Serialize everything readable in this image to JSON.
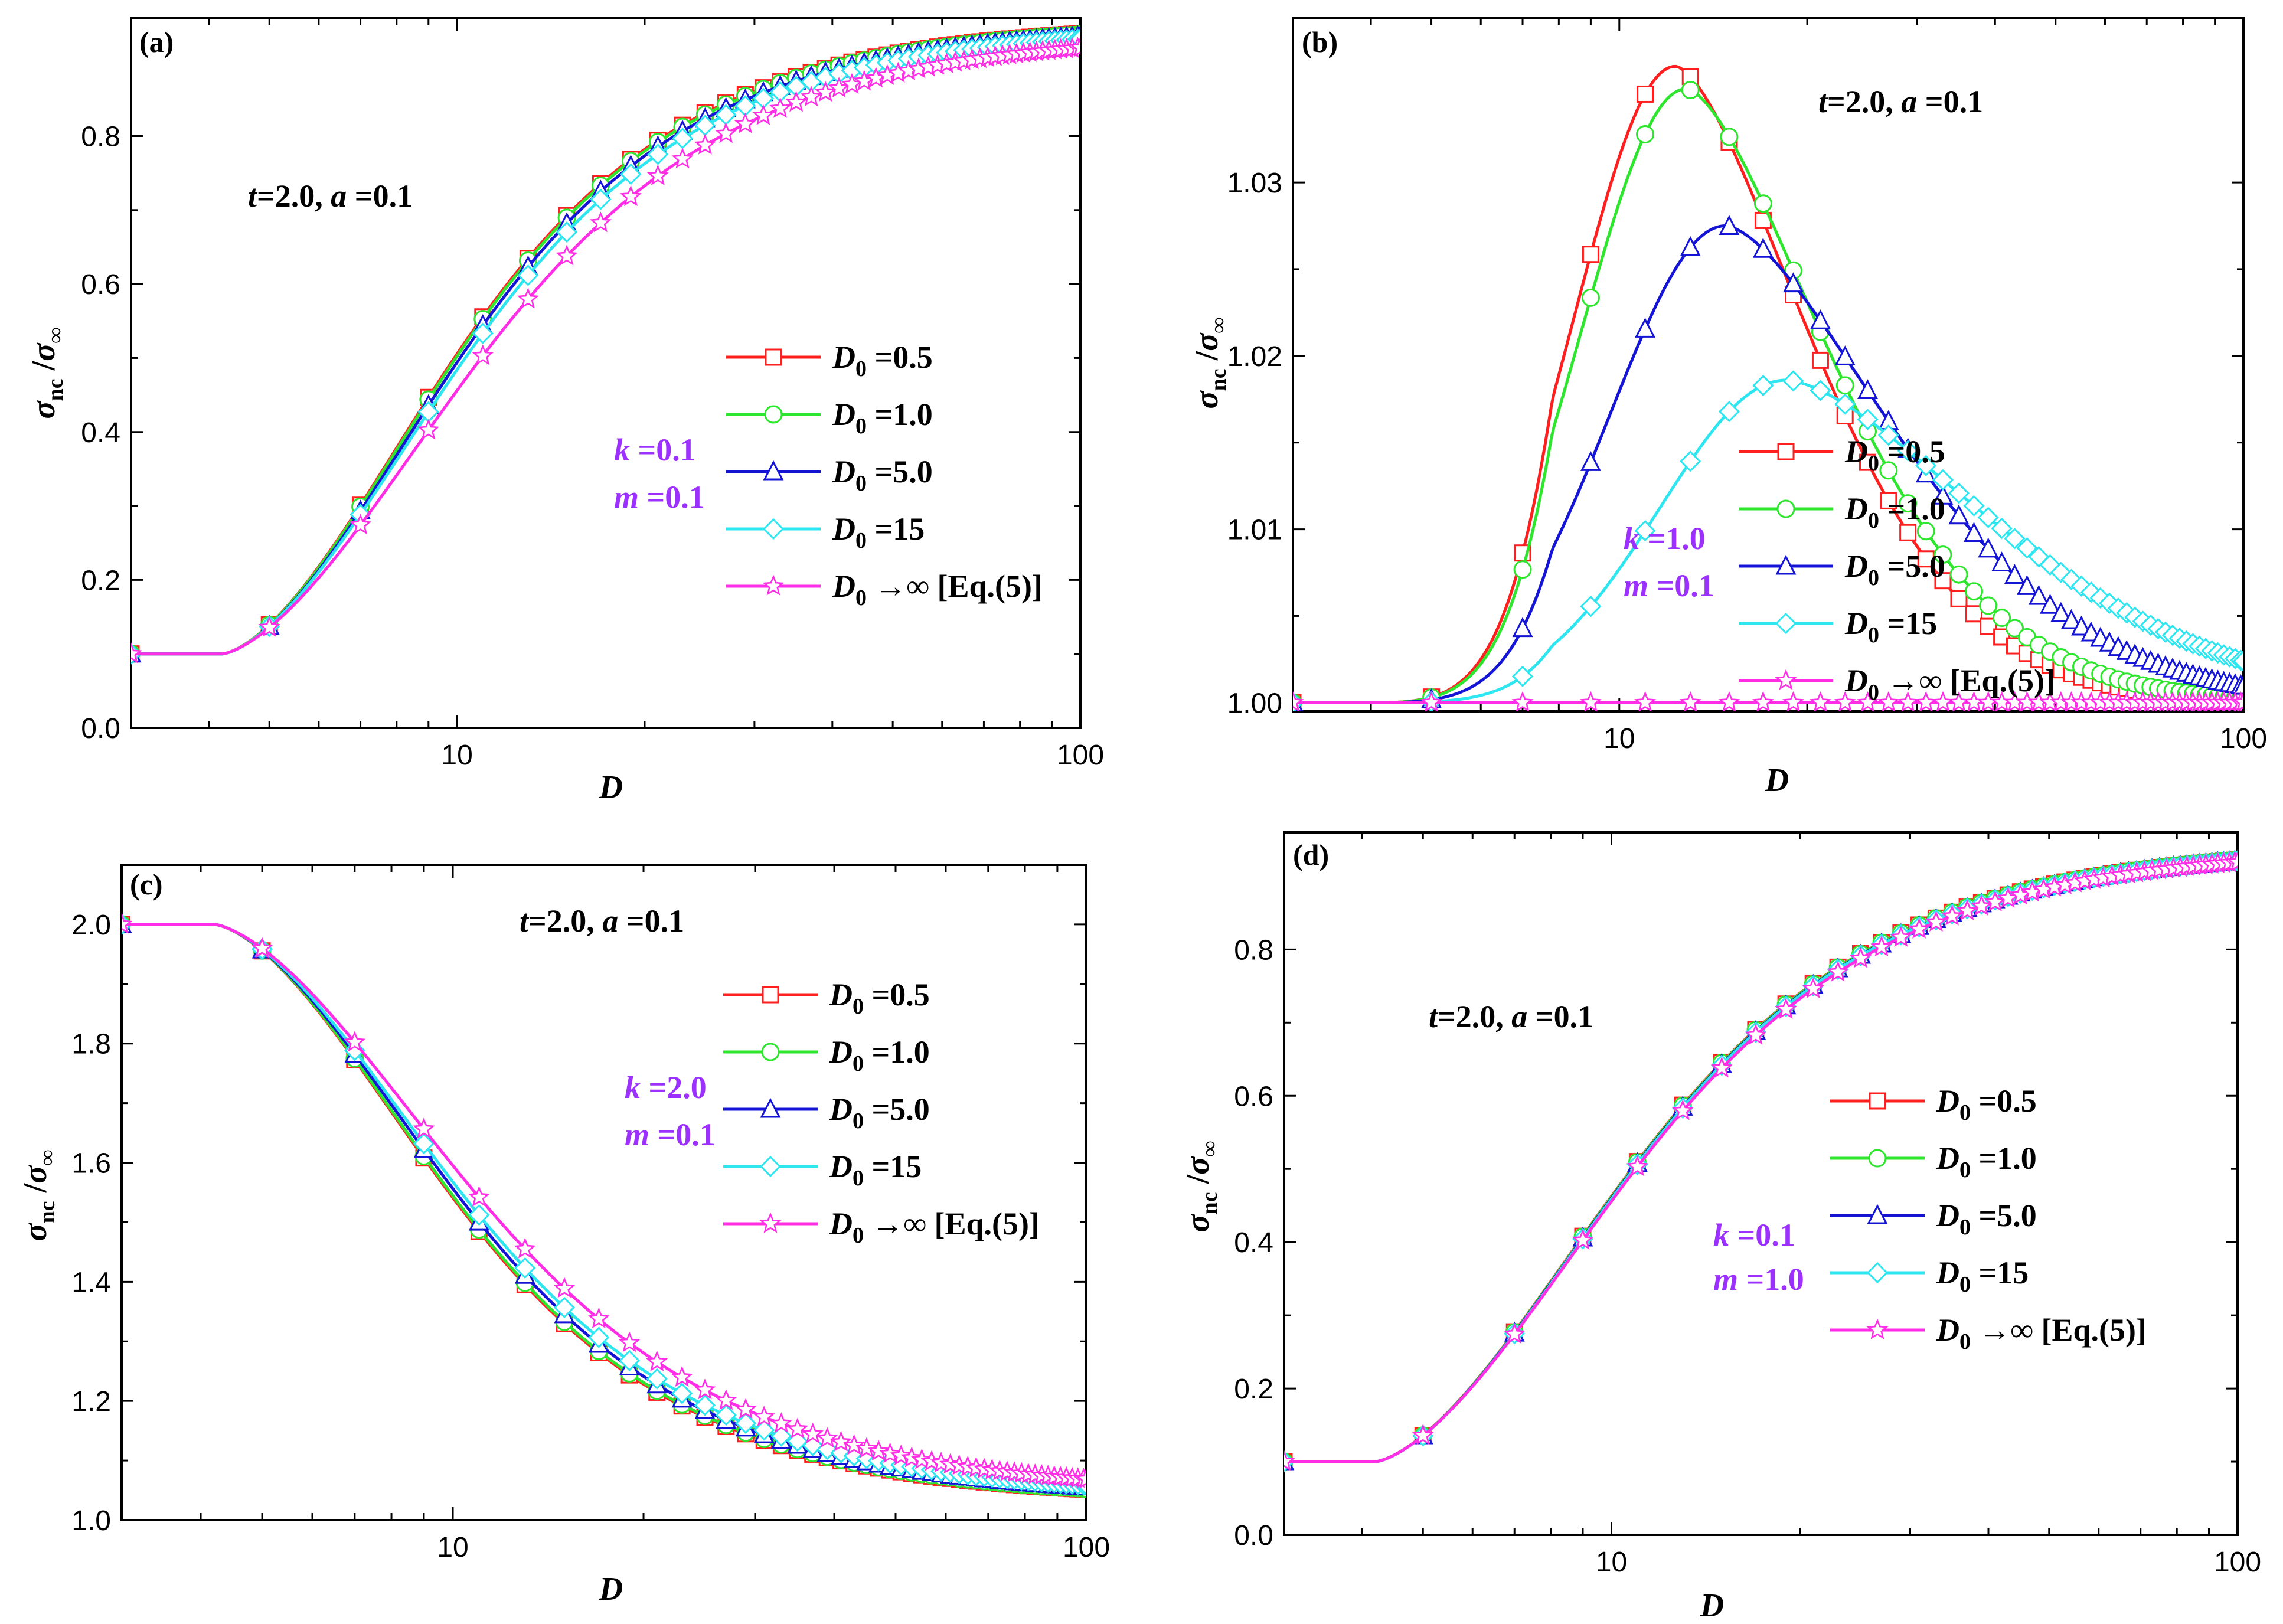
{
  "colors": {
    "red": "#ff1f1f",
    "green": "#2ee62e",
    "blue": "#1414d6",
    "cyan": "#2ee6f0",
    "magenta": "#ff2ee6",
    "purple": "#9b30ff"
  },
  "ylabel": {
    "sigma": "σ",
    "sub": "nc",
    "slash": " /",
    "sigma2": "σ",
    "sub2": "∞"
  },
  "xlabel": "D",
  "chart_data": [
    {
      "type": "line",
      "panel": "(a)",
      "params": "t=2.0, a =0.1",
      "params_parts": {
        "t": "t",
        "t_val": "=2.0, ",
        "a": "a",
        "a_val": " =0.1"
      },
      "k_line": "k =0.1",
      "m_line": "m =0.1",
      "xscale": "log",
      "xlim": [
        3.0,
        100
      ],
      "ylim": [
        0.0,
        0.96
      ],
      "xticks": [
        10,
        100
      ],
      "xtick_labels": [
        "10",
        "100"
      ],
      "yticks": [
        0.0,
        0.2,
        0.4,
        0.6,
        0.8
      ],
      "ytick_labels": [
        "0.0",
        "0.2",
        "0.4",
        "0.6",
        "0.8"
      ],
      "legend_position": "center-right",
      "series": [
        {
          "name": "D0 =0.5",
          "label_main": "=0.5",
          "marker": "square",
          "color": "red",
          "form": "sigmoid",
          "base": 0.1,
          "top": 0.953,
          "x0": 4.2,
          "w": 6.2,
          "p": 1.48
        },
        {
          "name": "D0 =1.0",
          "label_main": "=1.0",
          "marker": "circle",
          "color": "green",
          "form": "sigmoid",
          "base": 0.1,
          "top": 0.952,
          "x0": 4.2,
          "w": 6.25,
          "p": 1.48
        },
        {
          "name": "D0 =5.0",
          "label_main": "=5.0",
          "marker": "triangle",
          "color": "blue",
          "form": "sigmoid",
          "base": 0.1,
          "top": 0.95,
          "x0": 4.2,
          "w": 6.4,
          "p": 1.48
        },
        {
          "name": "D0 =15",
          "label_main": "=15",
          "marker": "diamond",
          "color": "cyan",
          "form": "sigmoid",
          "base": 0.1,
          "top": 0.948,
          "x0": 4.2,
          "w": 6.6,
          "p": 1.46
        },
        {
          "name": "D0 →∞ [Eq.(5)]",
          "label_main": "→∞ [Eq.(5)]",
          "marker": "star",
          "color": "magenta",
          "form": "sigmoid",
          "base": 0.1,
          "top": 0.94,
          "x0": 4.2,
          "w": 7.2,
          "p": 1.42
        }
      ]
    },
    {
      "type": "line",
      "panel": "(b)",
      "params": "t=2.0, a =0.1",
      "params_parts": {
        "t": "t",
        "t_val": "=2.0, ",
        "a": "a",
        "a_val": " =0.1"
      },
      "k_line": "k =1.0",
      "m_line": "m =0.1",
      "xscale": "log",
      "xlim": [
        3.0,
        100
      ],
      "ylim": [
        0.9995,
        1.0395
      ],
      "xticks": [
        10,
        100
      ],
      "xtick_labels": [
        "10",
        "100"
      ],
      "yticks": [
        1.0,
        1.01,
        1.02,
        1.03
      ],
      "ytick_labels": [
        "1.00",
        "1.01",
        "1.02",
        "1.03"
      ],
      "legend_position": "center-right",
      "series": [
        {
          "name": "D0 =0.5",
          "label_main": "=0.5",
          "marker": "square",
          "color": "red",
          "form": "peak",
          "base": 1.0,
          "amp": 0.0367,
          "xp": 12.3,
          "w": 0.29,
          "t": 1.08
        },
        {
          "name": "D0 =1.0",
          "label_main": "=1.0",
          "marker": "circle",
          "color": "green",
          "form": "peak",
          "base": 1.0,
          "amp": 0.0354,
          "xp": 12.8,
          "w": 0.3,
          "t": 1.1
        },
        {
          "name": "D0 =5.0",
          "label_main": "=5.0",
          "marker": "triangle",
          "color": "blue",
          "form": "peak",
          "base": 1.0,
          "amp": 0.0275,
          "xp": 14.8,
          "w": 0.33,
          "t": 1.18
        },
        {
          "name": "D0 =15",
          "label_main": "=15",
          "marker": "diamond",
          "color": "cyan",
          "form": "peak",
          "base": 1.0,
          "amp": 0.0186,
          "xp": 18.5,
          "w": 0.36,
          "t": 1.3
        },
        {
          "name": "D0 →∞ [Eq.(5)]",
          "label_main": "→∞ [Eq.(5)]",
          "marker": "star",
          "color": "magenta",
          "form": "flat",
          "base": 1.0
        }
      ]
    },
    {
      "type": "line",
      "panel": "(c)",
      "params": "t=2.0, a =0.1",
      "params_parts": {
        "t": "t",
        "t_val": "=2.0, ",
        "a": "a",
        "a_val": " =0.1"
      },
      "k_line": "k =2.0",
      "m_line": "m =0.1",
      "xscale": "log",
      "xlim": [
        3.0,
        100
      ],
      "ylim": [
        1.0,
        2.1
      ],
      "xticks": [
        10,
        100
      ],
      "xtick_labels": [
        "10",
        "100"
      ],
      "yticks": [
        1.0,
        1.2,
        1.4,
        1.6,
        1.8,
        2.0
      ],
      "ytick_labels": [
        "1.0",
        "1.2",
        "1.4",
        "1.6",
        "1.8",
        "2.0"
      ],
      "legend_position": "center-right",
      "series": [
        {
          "name": "D0 =0.5",
          "label_main": "=0.5",
          "marker": "square",
          "color": "red",
          "form": "decay",
          "base": 2.0,
          "drop": 0.965,
          "x0": 4.2,
          "w": 6.2,
          "p": 1.48
        },
        {
          "name": "D0 =1.0",
          "label_main": "=1.0",
          "marker": "circle",
          "color": "green",
          "form": "decay",
          "base": 2.0,
          "drop": 0.964,
          "x0": 4.2,
          "w": 6.25,
          "p": 1.48
        },
        {
          "name": "D0 =5.0",
          "label_main": "=5.0",
          "marker": "triangle",
          "color": "blue",
          "form": "decay",
          "base": 2.0,
          "drop": 0.962,
          "x0": 4.2,
          "w": 6.45,
          "p": 1.47
        },
        {
          "name": "D0 =15",
          "label_main": "=15",
          "marker": "diamond",
          "color": "cyan",
          "form": "decay",
          "base": 2.0,
          "drop": 0.96,
          "x0": 4.2,
          "w": 6.65,
          "p": 1.46
        },
        {
          "name": "D0 →∞ [Eq.(5)]",
          "label_main": "→∞ [Eq.(5)]",
          "marker": "star",
          "color": "magenta",
          "form": "decay",
          "base": 2.0,
          "drop": 0.955,
          "x0": 4.2,
          "w": 7.2,
          "p": 1.42
        }
      ]
    },
    {
      "type": "line",
      "panel": "(d)",
      "params": "t=2.0, a =0.1",
      "params_parts": {
        "t": "t",
        "t_val": "=2.0, ",
        "a": "a",
        "a_val": " =0.1"
      },
      "k_line": "k =0.1",
      "m_line": "m =1.0",
      "xscale": "log",
      "xlim": [
        3.0,
        100
      ],
      "ylim": [
        0.0,
        0.96
      ],
      "xticks": [
        10,
        100
      ],
      "xtick_labels": [
        "10",
        "100"
      ],
      "yticks": [
        0.0,
        0.2,
        0.4,
        0.6,
        0.8
      ],
      "ytick_labels": [
        "0.0",
        "0.2",
        "0.4",
        "0.6",
        "0.8"
      ],
      "legend_position": "center-right",
      "series": [
        {
          "name": "D0 =0.5",
          "label_main": "=0.5",
          "marker": "square",
          "color": "red",
          "form": "sigmoid",
          "base": 0.1,
          "top": 0.942,
          "x0": 4.2,
          "w": 7.05,
          "p": 1.43
        },
        {
          "name": "D0 =1.0",
          "label_main": "=1.0",
          "marker": "circle",
          "color": "green",
          "form": "sigmoid",
          "base": 0.1,
          "top": 0.942,
          "x0": 4.2,
          "w": 7.07,
          "p": 1.43
        },
        {
          "name": "D0 =5.0",
          "label_main": "=5.0",
          "marker": "triangle",
          "color": "blue",
          "form": "sigmoid",
          "base": 0.1,
          "top": 0.941,
          "x0": 4.2,
          "w": 7.1,
          "p": 1.43
        },
        {
          "name": "D0 =15",
          "label_main": "=15",
          "marker": "diamond",
          "color": "cyan",
          "form": "sigmoid",
          "base": 0.1,
          "top": 0.941,
          "x0": 4.2,
          "w": 7.13,
          "p": 1.43
        },
        {
          "name": "D0 →∞ [Eq.(5)]",
          "label_main": "→∞ [Eq.(5)]",
          "marker": "star",
          "color": "magenta",
          "form": "sigmoid",
          "base": 0.1,
          "top": 0.94,
          "x0": 4.2,
          "w": 7.2,
          "p": 1.42
        }
      ]
    }
  ]
}
